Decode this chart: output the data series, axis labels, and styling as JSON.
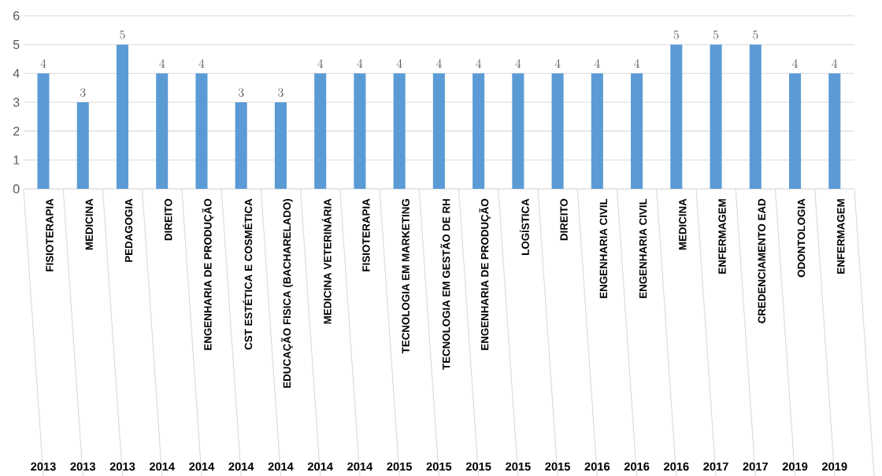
{
  "chart_data": {
    "type": "bar",
    "categories": [
      "FISIOTERAPIA",
      "MEDICINA",
      "PEDAGOGIA",
      "DIREITO",
      "ENGENHARIA DE PRODUÇÃO",
      "CST ESTÉTICA E COSMÉTICA",
      "EDUCAÇÃO FISICA (BACHARELADO)",
      "MEDICINA VETERINÁRIA",
      "FISIOTERAPIA",
      "TECNOLOGIA EM MARKETING",
      "TECNOLOGIA EM GESTÃO DE RH",
      "ENGENHARIA DE PRODUÇÃO",
      "LOGÍSTICA",
      "DIREITO",
      "ENGENHARIA CIVIL",
      "ENGENHARIA CIVIL",
      "MEDICINA",
      "ENFERMAGEM",
      "CREDENCIAMENTO EAD",
      "ODONTOLOGIA",
      "ENFERMAGEM"
    ],
    "values": [
      4,
      3,
      5,
      4,
      4,
      3,
      3,
      4,
      4,
      4,
      4,
      4,
      4,
      4,
      4,
      4,
      5,
      5,
      5,
      4,
      4
    ],
    "color": "#5b9bd5",
    "annotations": [
      "2013",
      "2013",
      "2013",
      "2014",
      "2014",
      "2014",
      "2014",
      "2014",
      "2014",
      "2015",
      "2015",
      "2015",
      "2015",
      "2015",
      "2016",
      "2016",
      "2016",
      "2017",
      "2017",
      "2019",
      "2019"
    ],
    "ylim": [
      0,
      6
    ],
    "yticks": [
      0,
      1,
      2,
      3,
      4,
      5,
      6
    ],
    "grid": "y",
    "data_labels": true
  }
}
